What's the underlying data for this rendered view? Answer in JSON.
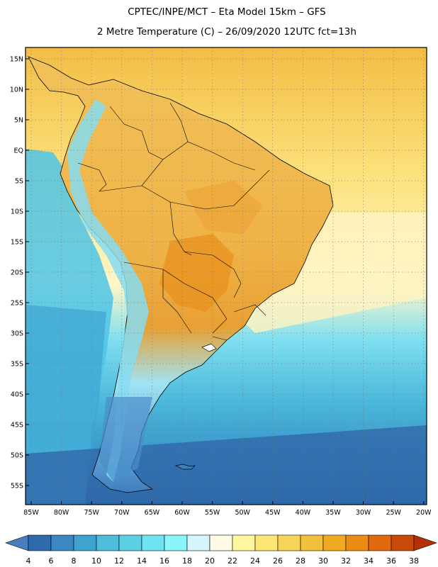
{
  "title": {
    "line1": "CPTEC/INPE/MCT  –   Eta Model 15km  –  GFS",
    "line2": "2 Metre Temperature (C) – 26/09/2020 12UTC fct=13h"
  },
  "axes": {
    "lat_labels": [
      "15N",
      "10N",
      "5N",
      "EQ",
      "5S",
      "10S",
      "15S",
      "20S",
      "25S",
      "30S",
      "35S",
      "40S",
      "45S",
      "50S",
      "55S"
    ],
    "lon_labels": [
      "85W",
      "80W",
      "75W",
      "70W",
      "65W",
      "60W",
      "55W",
      "50W",
      "45W",
      "40W",
      "35W",
      "30W",
      "25W",
      "20W"
    ]
  },
  "colorbar": {
    "labels": [
      "4",
      "6",
      "8",
      "10",
      "12",
      "14",
      "16",
      "18",
      "20",
      "22",
      "24",
      "26",
      "28",
      "30",
      "32",
      "34",
      "36",
      "38"
    ],
    "colors": [
      "#4a7dbd",
      "#2e6aac",
      "#3a87c2",
      "#3fa2cf",
      "#4fbcdb",
      "#5ccfe3",
      "#6fe4f0",
      "#88f6fa",
      "#d4f6fc",
      "#fffbe6",
      "#fff7a0",
      "#fde774",
      "#f7d55a",
      "#f1c13e",
      "#f0aa22",
      "#ea8b16",
      "#e0680d",
      "#c94a06",
      "#b23205"
    ]
  },
  "map": {
    "ocean_gradient_colors": [
      "#f2bd45",
      "#fce27c",
      "#fff6c8",
      "#7edff0",
      "#4ab6d9",
      "#3a93c8",
      "#2e6bab"
    ],
    "land_colors": [
      "#efb246",
      "#f1c25a",
      "#e38b1e",
      "#9fe4f5",
      "#3e7fc0"
    ]
  }
}
